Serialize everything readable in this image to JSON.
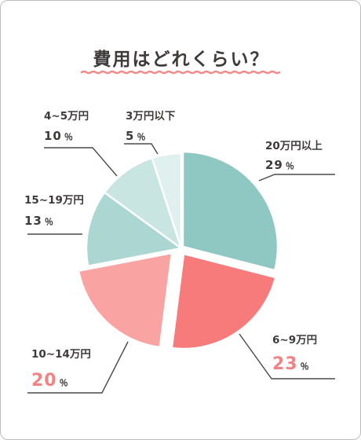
{
  "chart_data": {
    "type": "pie",
    "title": "費用はどれくらい？",
    "percent_suffix": "％",
    "slices": [
      {
        "label": "20万円以上",
        "value": 29,
        "color": "#8fc7c2",
        "highlight": false
      },
      {
        "label": "6~9万円",
        "value": 23,
        "color": "#f87b7b",
        "highlight": true
      },
      {
        "label": "10~14万円",
        "value": 20,
        "color": "#f9a3a3",
        "highlight": true
      },
      {
        "label": "15~19万円",
        "value": 13,
        "color": "#abd6d2",
        "highlight": false
      },
      {
        "label": "4~5万円",
        "value": 10,
        "color": "#c8e5e2",
        "highlight": false
      },
      {
        "label": "3万円以下",
        "value": 5,
        "color": "#dff0ee",
        "highlight": false
      }
    ]
  },
  "colors": {
    "title_underline": "#f28a8a",
    "leader_line": "#4a4a4a",
    "text": "#3d3a39",
    "highlight_text": "#f28283"
  }
}
